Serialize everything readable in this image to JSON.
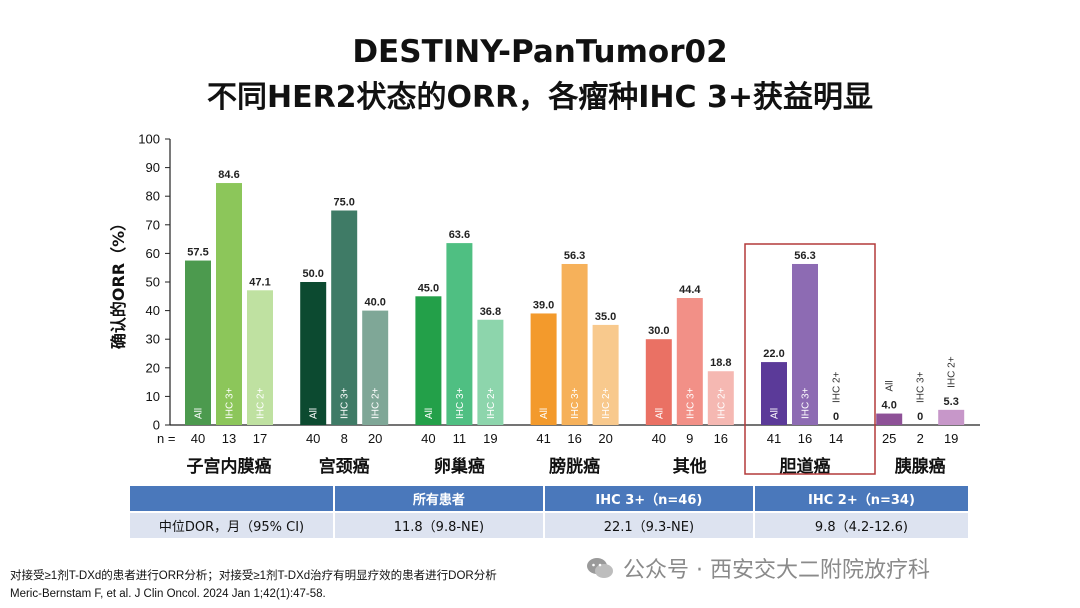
{
  "title_line1": "DESTINY-PanTumor02",
  "title_line2": "不同HER2状态的ORR，各瘤种IHC 3+获益明显",
  "chart_data": {
    "type": "bar",
    "ylabel": "确认的ORR（%）",
    "ylim": [
      0,
      100
    ],
    "yticks": [
      0,
      10,
      20,
      30,
      40,
      50,
      60,
      70,
      80,
      90,
      100
    ],
    "n_label": "n =",
    "highlighted_group": "胆道癌",
    "groups": [
      {
        "name": "子宫内膜癌",
        "bars": [
          {
            "label": "All",
            "value": 57.5,
            "value_label": "57.5",
            "n": "40",
            "color": "#4c9a4e"
          },
          {
            "label": "IHC 3+",
            "value": 84.6,
            "value_label": "84.6",
            "n": "13",
            "color": "#8cc65a"
          },
          {
            "label": "IHC 2+",
            "value": 47.1,
            "value_label": "47.1",
            "n": "17",
            "color": "#bfe1a1"
          }
        ]
      },
      {
        "name": "宫颈癌",
        "bars": [
          {
            "label": "All",
            "value": 50.0,
            "value_label": "50.0",
            "n": "40",
            "color": "#0c4a30"
          },
          {
            "label": "IHC 3+",
            "value": 75.0,
            "value_label": "75.0",
            "n": "8",
            "color": "#3f7b66"
          },
          {
            "label": "IHC 2+",
            "value": 40.0,
            "value_label": "40.0",
            "n": "20",
            "color": "#7fa797"
          }
        ]
      },
      {
        "name": "卵巢癌",
        "bars": [
          {
            "label": "All",
            "value": 45.0,
            "value_label": "45.0",
            "n": "40",
            "color": "#23a049"
          },
          {
            "label": "IHC 3+",
            "value": 63.6,
            "value_label": "63.6",
            "n": "11",
            "color": "#4fbf82"
          },
          {
            "label": "IHC 2+",
            "value": 36.8,
            "value_label": "36.8",
            "n": "19",
            "color": "#8dd5ac"
          }
        ]
      },
      {
        "name": "膀胱癌",
        "bars": [
          {
            "label": "All",
            "value": 39.0,
            "value_label": "39.0",
            "n": "41",
            "color": "#f39a2c"
          },
          {
            "label": "IHC 3+",
            "value": 56.3,
            "value_label": "56.3",
            "n": "16",
            "color": "#f6b15a"
          },
          {
            "label": "IHC 2+",
            "value": 35.0,
            "value_label": "35.0",
            "n": "20",
            "color": "#f8c98d"
          }
        ]
      },
      {
        "name": "其他",
        "bars": [
          {
            "label": "All",
            "value": 30.0,
            "value_label": "30.0",
            "n": "40",
            "color": "#ea7164"
          },
          {
            "label": "IHC 3+",
            "value": 44.4,
            "value_label": "44.4",
            "n": "9",
            "color": "#f29087"
          },
          {
            "label": "IHC 2+",
            "value": 18.8,
            "value_label": "18.8",
            "n": "16",
            "color": "#f5b8b2"
          }
        ]
      },
      {
        "name": "胆道癌",
        "bars": [
          {
            "label": "All",
            "value": 22.0,
            "value_label": "22.0",
            "n": "41",
            "color": "#5b3a99"
          },
          {
            "label": "IHC 3+",
            "value": 56.3,
            "value_label": "56.3",
            "n": "16",
            "color": "#8d6bb3"
          },
          {
            "label": "IHC 2+",
            "value": 0,
            "value_label": "0",
            "n": "14",
            "color": "#c7b6da"
          }
        ]
      },
      {
        "name": "胰腺癌",
        "bars": [
          {
            "label": "All",
            "value": 4.0,
            "value_label": "4.0",
            "n": "25",
            "color": "#8e5197"
          },
          {
            "label": "IHC 3+",
            "value": 0,
            "value_label": "0",
            "n": "2",
            "color": "#b787bd"
          },
          {
            "label": "IHC 2+",
            "value": 5.3,
            "value_label": "5.3",
            "n": "19",
            "color": "#c797c9"
          }
        ]
      }
    ]
  },
  "dor_table": {
    "headers": [
      "",
      "所有患者",
      "IHC 3+（n=46)",
      "IHC 2+（n=34)"
    ],
    "row": [
      "中位DOR，月（95% CI)",
      "11.8（9.8-NE)",
      "22.1（9.3-NE)",
      "9.8（4.2-12.6)"
    ]
  },
  "footnote1": "对接受≥1剂T-DXd的患者进行ORR分析；对接受≥1剂T-DXd治疗有明显疗效的患者进行DOR分析",
  "footnote2": "Meric-Bernstam F, et al. J Clin Oncol. 2024 Jan 1;42(1):47-58.",
  "watermark": "公众号 · 西安交大二附院放疗科"
}
